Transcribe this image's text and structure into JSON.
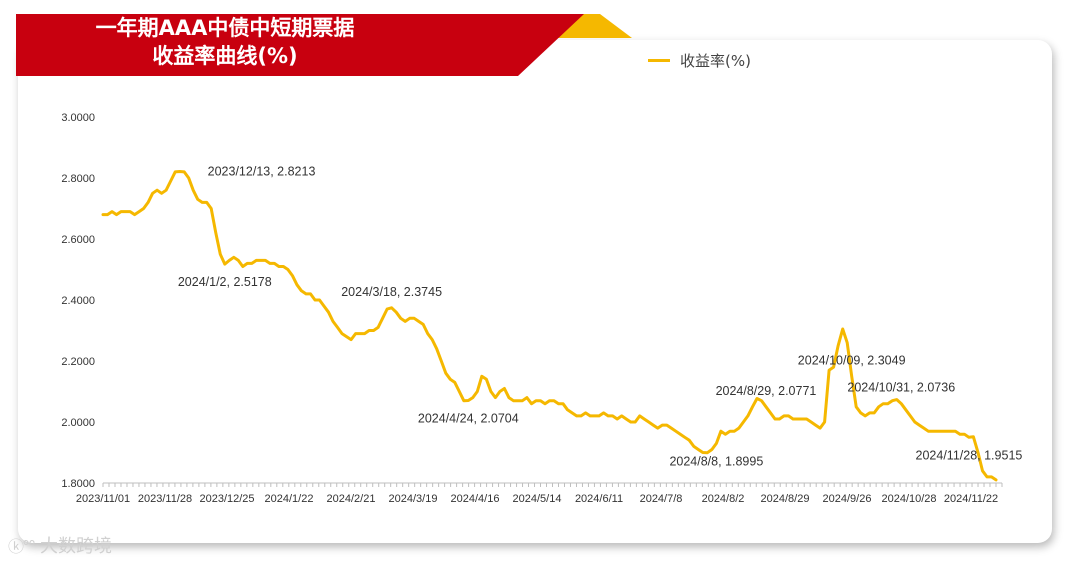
{
  "title_line1": "一年期AAA中债中短期票据",
  "title_line2": "收益率曲线(%)",
  "legend_label": "收益率(%)",
  "watermark_text": "大数跨境",
  "colors": {
    "line": "#f5b800",
    "banner": "#c8000f",
    "banner_accent": "#f5b800",
    "axis_text": "#333333"
  },
  "chart_data": {
    "type": "line",
    "title": "一年期AAA中债中短期票据收益率曲线(%)",
    "ylim": [
      1.8,
      3.0
    ],
    "ytick_labels": [
      "1.8000",
      "2.0000",
      "2.2000",
      "2.4000",
      "2.6000",
      "2.8000",
      "3.0000"
    ],
    "xtick_labels": [
      "2023/11/01",
      "2023/11/28",
      "2023/12/25",
      "2024/1/22",
      "2024/2/21",
      "2024/3/19",
      "2024/4/16",
      "2024/5/14",
      "2024/6/11",
      "2024/7/8",
      "2024/8/2",
      "2024/8/29",
      "2024/9/26",
      "2024/10/28",
      "2024/11/22"
    ],
    "series": [
      {
        "name": "收益率(%)",
        "values": [
          2.68,
          2.68,
          2.69,
          2.68,
          2.69,
          2.69,
          2.69,
          2.68,
          2.69,
          2.7,
          2.72,
          2.75,
          2.76,
          2.75,
          2.76,
          2.79,
          2.82,
          2.8213,
          2.82,
          2.8,
          2.76,
          2.73,
          2.72,
          2.72,
          2.7,
          2.62,
          2.55,
          2.5178,
          2.53,
          2.54,
          2.53,
          2.51,
          2.52,
          2.52,
          2.53,
          2.53,
          2.53,
          2.52,
          2.52,
          2.51,
          2.51,
          2.5,
          2.48,
          2.45,
          2.43,
          2.42,
          2.42,
          2.4,
          2.4,
          2.38,
          2.36,
          2.33,
          2.31,
          2.29,
          2.28,
          2.27,
          2.29,
          2.29,
          2.29,
          2.3,
          2.3,
          2.31,
          2.34,
          2.37,
          2.3745,
          2.36,
          2.34,
          2.33,
          2.34,
          2.34,
          2.33,
          2.32,
          2.29,
          2.27,
          2.24,
          2.2,
          2.16,
          2.14,
          2.13,
          2.1,
          2.07,
          2.0704,
          2.08,
          2.1,
          2.15,
          2.14,
          2.1,
          2.08,
          2.1,
          2.11,
          2.08,
          2.07,
          2.07,
          2.07,
          2.08,
          2.06,
          2.07,
          2.07,
          2.06,
          2.07,
          2.07,
          2.06,
          2.06,
          2.04,
          2.03,
          2.02,
          2.02,
          2.03,
          2.02,
          2.02,
          2.02,
          2.03,
          2.02,
          2.02,
          2.01,
          2.02,
          2.01,
          2.0,
          2.0,
          2.02,
          2.01,
          2.0,
          1.99,
          1.98,
          1.99,
          1.99,
          1.98,
          1.97,
          1.96,
          1.95,
          1.94,
          1.92,
          1.91,
          1.9,
          1.8995,
          1.91,
          1.93,
          1.97,
          1.96,
          1.97,
          1.97,
          1.98,
          2.0,
          2.02,
          2.05,
          2.0771,
          2.07,
          2.05,
          2.03,
          2.01,
          2.01,
          2.02,
          2.02,
          2.01,
          2.01,
          2.01,
          2.01,
          2.0,
          1.99,
          1.98,
          2.0,
          2.17,
          2.18,
          2.25,
          2.3049,
          2.26,
          2.15,
          2.05,
          2.03,
          2.02,
          2.03,
          2.03,
          2.05,
          2.06,
          2.06,
          2.07,
          2.0736,
          2.06,
          2.04,
          2.02,
          2.0,
          1.99,
          1.98,
          1.97,
          1.97,
          1.97,
          1.97,
          1.97,
          1.97,
          1.97,
          1.96,
          1.96,
          1.95,
          1.9515,
          1.9,
          1.84,
          1.82,
          1.82,
          1.81
        ]
      }
    ],
    "annotations": [
      {
        "text": "2023/12/13, 2.8213",
        "index": 17,
        "placement": "right"
      },
      {
        "text": "2024/1/2, 2.5178",
        "index": 27,
        "placement": "below"
      },
      {
        "text": "2024/3/18, 2.3745",
        "index": 64,
        "placement": "above"
      },
      {
        "text": "2024/4/24, 2.0704",
        "index": 81,
        "placement": "below"
      },
      {
        "text": "2024/8/8, 1.8995",
        "index": 136,
        "placement": "below"
      },
      {
        "text": "2024/8/29, 2.0771",
        "index": 147,
        "placement": "above"
      },
      {
        "text": "2024/10/09, 2.3049",
        "index": 166,
        "placement": "above"
      },
      {
        "text": "2024/10/31, 2.0736",
        "index": 177,
        "placement": "above"
      },
      {
        "text": "2024/11/28, 1.9515",
        "index": 192,
        "placement": "below"
      }
    ],
    "grid": false,
    "legend_position": "top-right"
  }
}
